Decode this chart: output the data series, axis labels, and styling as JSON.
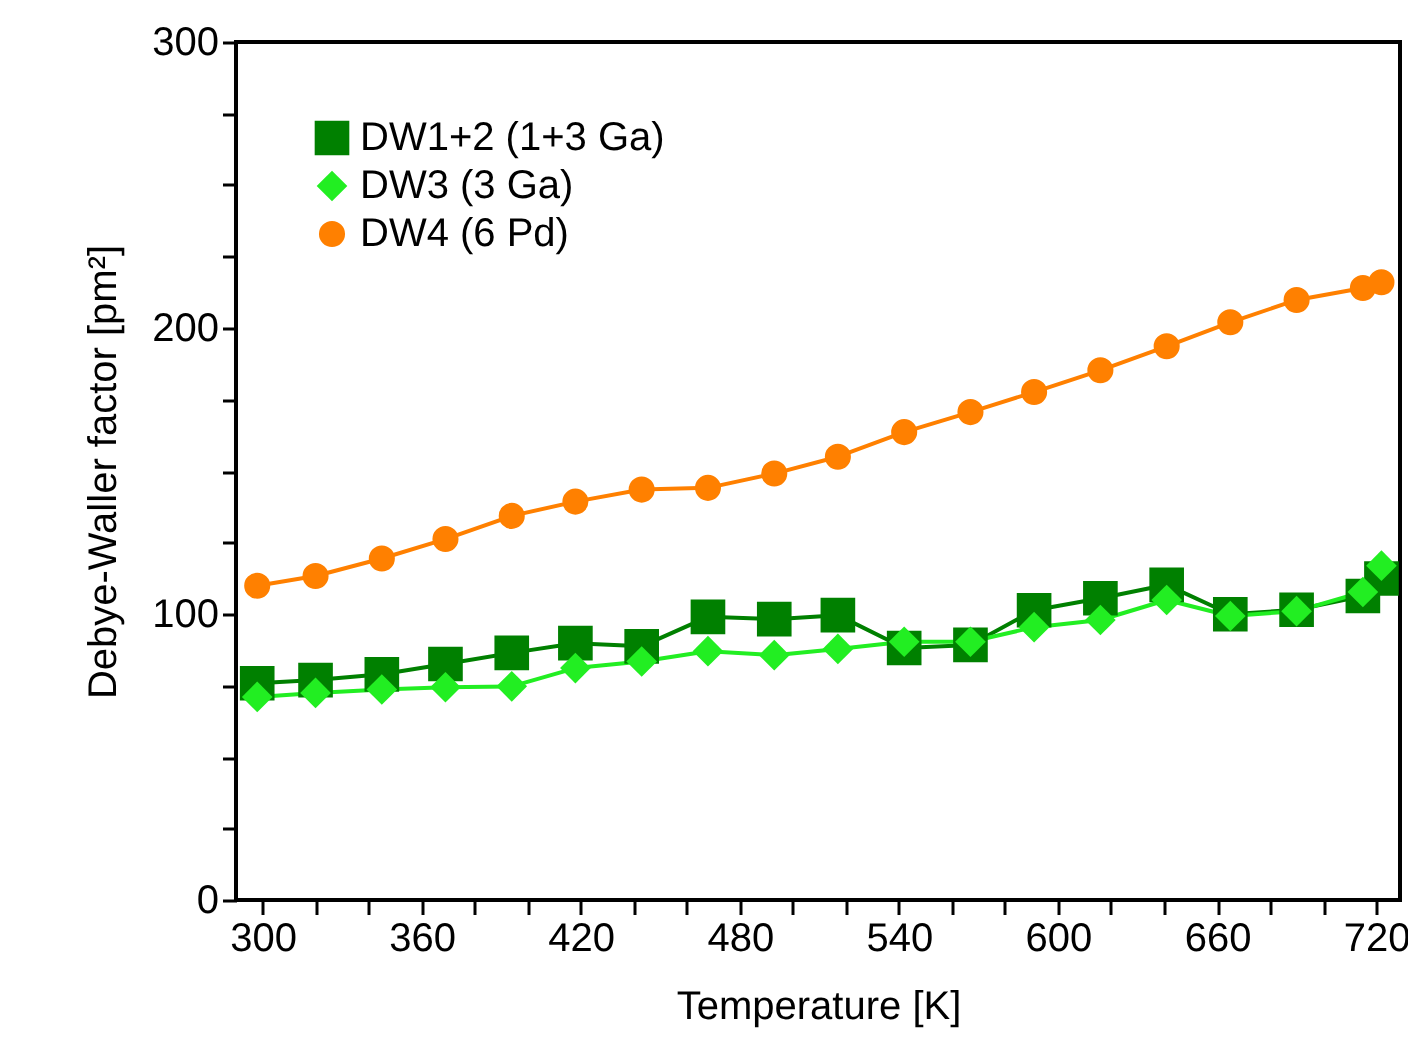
{
  "chart_data": {
    "type": "line",
    "xlabel": "Temperature [K]",
    "ylabel": "Debye-Waller factor [pm²]",
    "x": [
      298,
      320,
      345,
      369,
      394,
      418,
      443,
      468,
      493,
      517,
      542,
      567,
      591,
      616,
      641,
      665,
      690,
      715,
      722
    ],
    "series": [
      {
        "name": "DW1+2 (1+3 Ga)",
        "color": "#008000",
        "marker": "square",
        "values": [
          75.8,
          76.9,
          78.9,
          82.5,
          86.4,
          89.8,
          88.7,
          99,
          98.2,
          99.6,
          88.1,
          89.2,
          101.3,
          105.5,
          110.2,
          99.9,
          101.5,
          106.3,
          112.4
        ]
      },
      {
        "name": "DW3 (3 Ga)",
        "color": "#22ee22",
        "marker": "diamond",
        "values": [
          71,
          72.4,
          73.6,
          74.4,
          74.7,
          81.1,
          83.4,
          87,
          85.6,
          87.8,
          90.3,
          90.3,
          95.4,
          97.9,
          104.9,
          99.3,
          101,
          107.7,
          116.9
        ]
      },
      {
        "name": "DW4 (6 Pd)",
        "color": "#ff8000",
        "marker": "circle",
        "values": [
          109.9,
          113.3,
          119.4,
          126.2,
          134.3,
          139.3,
          143.5,
          144.1,
          149.1,
          155,
          163.6,
          170.6,
          177.6,
          185.2,
          193.6,
          202,
          209.8,
          214,
          216
        ]
      }
    ],
    "xlim": [
      290,
      729
    ],
    "ylim": [
      0,
      300
    ],
    "xticks": [
      300,
      {
        "value": 320,
        "label": null
      },
      {
        "value": 340,
        "label": null
      },
      360,
      {
        "value": 380,
        "label": null
      },
      {
        "value": 400,
        "label": null
      },
      420,
      {
        "value": 440,
        "label": null
      },
      {
        "value": 460,
        "label": null
      },
      480,
      {
        "value": 500,
        "label": null
      },
      {
        "value": 520,
        "label": null
      },
      540,
      {
        "value": 560,
        "label": null
      },
      {
        "value": 580,
        "label": null
      },
      600,
      {
        "value": 620,
        "label": null
      },
      {
        "value": 640,
        "label": null
      },
      660,
      {
        "value": 680,
        "label": null
      },
      {
        "value": 700,
        "label": null
      },
      720
    ],
    "yticks": [
      0,
      {
        "value": 25,
        "label": null
      },
      {
        "value": 50,
        "label": null
      },
      {
        "value": 75,
        "label": null
      },
      100,
      {
        "value": 125,
        "label": null
      },
      {
        "value": 150,
        "label": null
      },
      {
        "value": 175,
        "label": null
      },
      200,
      {
        "value": 225,
        "label": null
      },
      {
        "value": 250,
        "label": null
      },
      {
        "value": 275,
        "label": null
      },
      300
    ],
    "legend": "top left",
    "line_style": "solid",
    "grid": false
  }
}
